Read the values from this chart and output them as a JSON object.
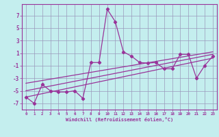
{
  "xlabel": "Windchill (Refroidissement éolien,°C)",
  "xlim": [
    -0.5,
    23.5
  ],
  "ylim": [
    -8.0,
    8.8
  ],
  "yticks": [
    -7,
    -5,
    -3,
    -1,
    1,
    3,
    5,
    7
  ],
  "xticks": [
    0,
    1,
    2,
    3,
    4,
    5,
    6,
    7,
    8,
    9,
    10,
    11,
    12,
    13,
    14,
    15,
    16,
    17,
    18,
    19,
    20,
    21,
    22,
    23
  ],
  "background_color": "#c4eeee",
  "grid_color": "#9999bb",
  "line_color": "#993399",
  "main_x": [
    0,
    1,
    2,
    3,
    4,
    5,
    6,
    7,
    8,
    9,
    10,
    11,
    12,
    13,
    14,
    15,
    16,
    17,
    18,
    19,
    20,
    21,
    22,
    23
  ],
  "main_y": [
    -6,
    -7,
    -4,
    -5,
    -5.2,
    -5.2,
    -5,
    -6.2,
    -0.5,
    -0.5,
    8,
    6,
    1.2,
    0.5,
    -0.5,
    -0.6,
    -0.5,
    -1.5,
    -1.5,
    0.8,
    0.8,
    -3,
    -1,
    0.5
  ],
  "trend1_x": [
    0,
    23
  ],
  "trend1_y": [
    -6.0,
    0.2
  ],
  "trend2_x": [
    0,
    23
  ],
  "trend2_y": [
    -5.0,
    0.8
  ],
  "trend3_x": [
    0,
    23
  ],
  "trend3_y": [
    -3.8,
    1.2
  ]
}
